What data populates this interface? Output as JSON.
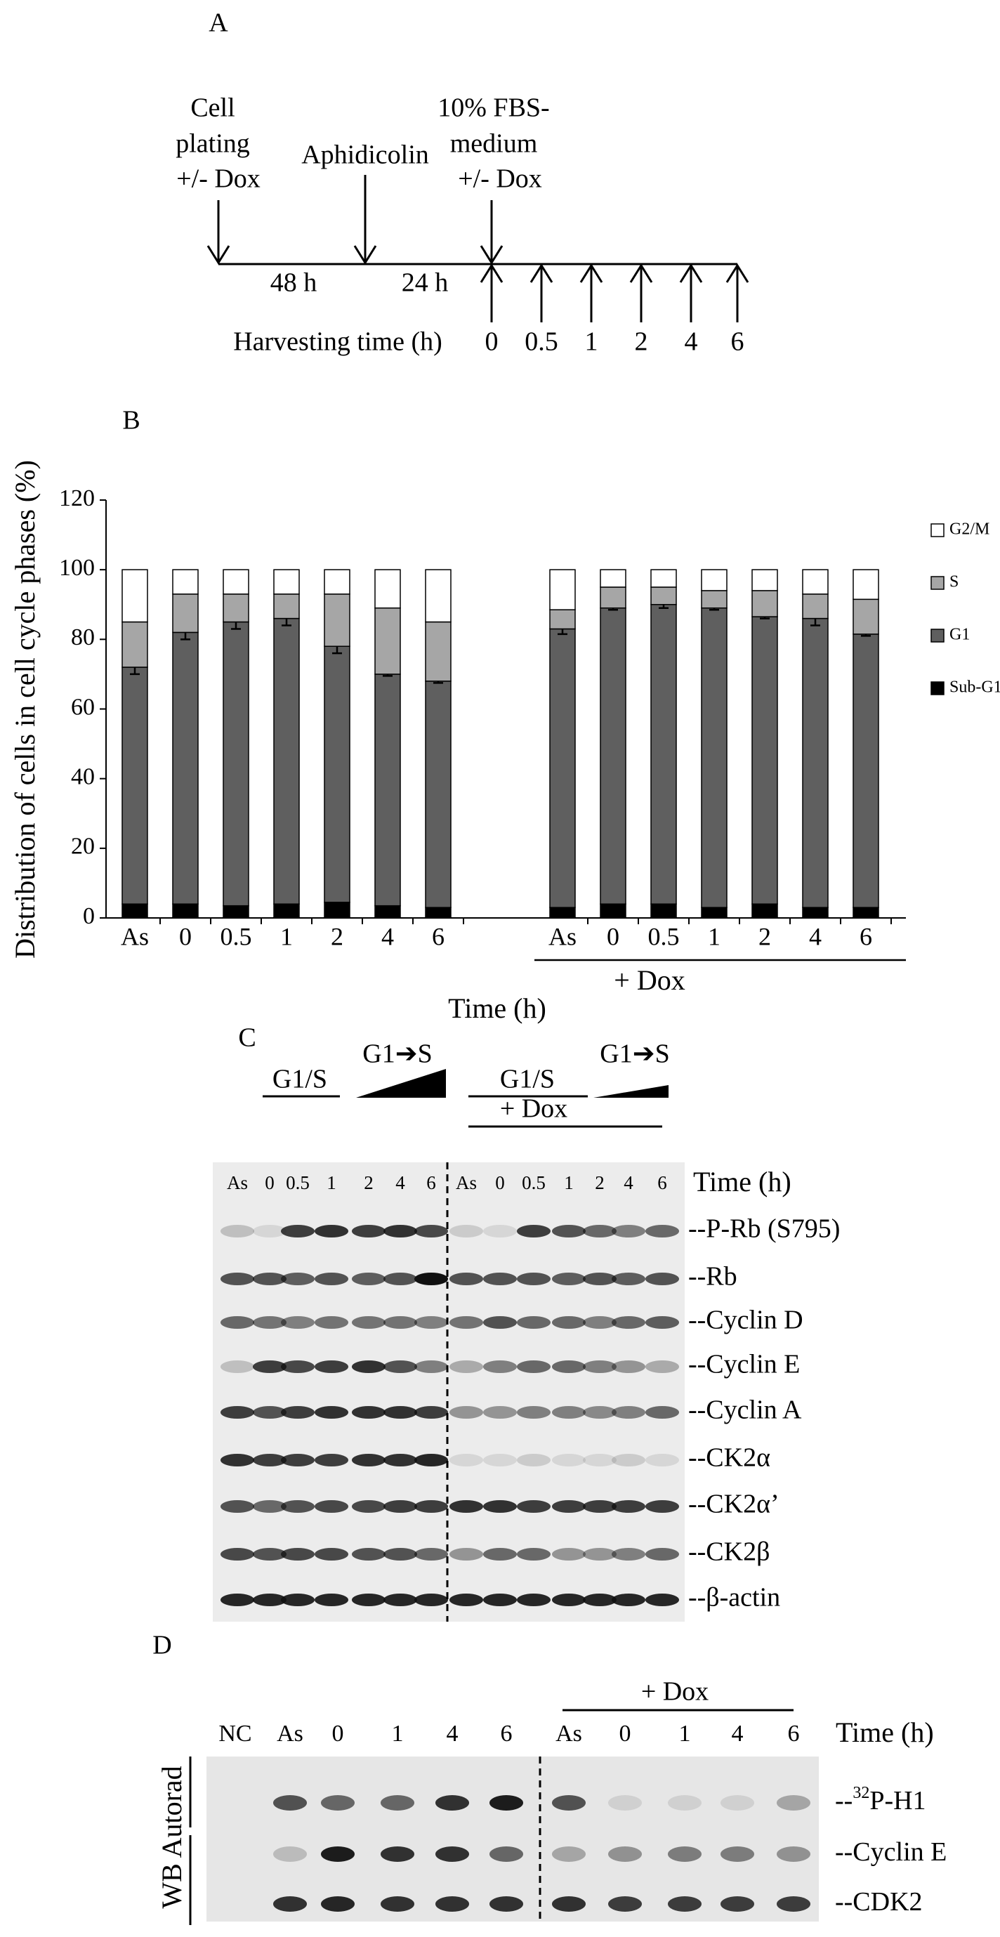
{
  "panel_a": {
    "label": "A",
    "events": [
      {
        "lines": [
          "Cell",
          "plating",
          "+/- Dox"
        ]
      },
      {
        "lines": [
          "Aphidicolin"
        ]
      },
      {
        "lines": [
          "10% FBS-",
          "medium",
          "+/- Dox"
        ]
      }
    ],
    "intervals": [
      "48 h",
      "24 h"
    ],
    "harvest_label": "Harvesting time (h)",
    "harvest_times": [
      "0",
      "0.5",
      "1",
      "2",
      "4",
      "6"
    ]
  },
  "chart_data": {
    "type": "bar",
    "stacked": true,
    "panel_label": "B",
    "xlabel": "Time (h)",
    "ylabel": "Distribution of cells in cell cycle phases (%)",
    "annotation": "+ Dox",
    "categories": [
      "As",
      "0",
      "0.5",
      "1",
      "2",
      "4",
      "6",
      "As",
      "0",
      "0.5",
      "1",
      "2",
      "4",
      "6"
    ],
    "series": [
      {
        "name": "Sub-G1",
        "color": "#000000",
        "values": [
          4,
          4,
          3.5,
          4,
          4.5,
          3.5,
          3,
          3,
          4,
          4,
          3,
          4,
          3,
          3
        ]
      },
      {
        "name": "G1",
        "color": "#5f5f5f",
        "values": [
          68,
          78,
          81.5,
          82,
          73.5,
          66.5,
          65,
          80,
          85,
          86,
          86,
          82.5,
          83,
          78.5
        ],
        "errors": [
          2,
          2,
          2,
          2,
          2,
          0.5,
          0.5,
          1.5,
          0.5,
          1,
          0.5,
          0.5,
          2,
          0.5
        ]
      },
      {
        "name": "S",
        "color": "#a6a6a6",
        "values": [
          13,
          11,
          8,
          7,
          15,
          19,
          17,
          5.5,
          6,
          5,
          5,
          7.5,
          7,
          10
        ]
      },
      {
        "name": "G2/M",
        "color": "#ffffff",
        "values": [
          15,
          7,
          7,
          7,
          7,
          11,
          15,
          11.5,
          5,
          5,
          6,
          6,
          7,
          8.5
        ]
      }
    ],
    "ylim": [
      0,
      120
    ],
    "yticks": [
      0,
      20,
      40,
      60,
      80,
      100,
      120
    ],
    "grid": false,
    "legend": "right"
  },
  "panel_c": {
    "label": "C",
    "g1s": "G1/S",
    "g1_to_s": "G1➔S",
    "dox": "+ Dox",
    "time_label": "Time (h)",
    "lanes": [
      "As",
      "0",
      "0.5",
      "1",
      "2",
      "4",
      "6",
      "As",
      "0",
      "0.5",
      "1",
      "2",
      "4",
      "6"
    ],
    "bands": [
      "--P-Rb (S795)",
      "--Rb",
      "--Cyclin D",
      "--Cyclin E",
      "--Cyclin A",
      "--CK2α",
      "--CK2α’",
      "--CK2β",
      "--β-actin"
    ]
  },
  "panel_d": {
    "label": "D",
    "dox": "+ Dox",
    "time_label": "Time (h)",
    "side_labels": [
      "WB",
      "Autorad"
    ],
    "lanes": [
      "NC",
      "As",
      "0",
      "1",
      "4",
      "6",
      "As",
      "0",
      "1",
      "4",
      "6"
    ],
    "bands": [
      {
        "prefix": "--",
        "sup": "32",
        "text": "P-H1"
      },
      {
        "text": "--Cyclin E"
      },
      {
        "text": "--CDK2"
      }
    ]
  }
}
